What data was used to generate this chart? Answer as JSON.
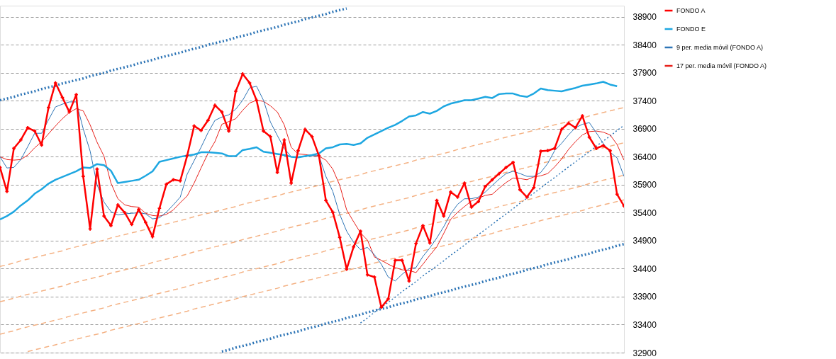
{
  "chart_data": {
    "type": "line",
    "categories": [
      null,
      null,
      null,
      null,
      null,
      null,
      null,
      null,
      null,
      null,
      null,
      null,
      null,
      null,
      null,
      null,
      null,
      null,
      null,
      null,
      null,
      null,
      null,
      null,
      null,
      null,
      null,
      null,
      null,
      null,
      null,
      null,
      null,
      null,
      null,
      null,
      null,
      null,
      null,
      null,
      null,
      null,
      null,
      null,
      null,
      null,
      null,
      null,
      null,
      null,
      null,
      null,
      null,
      null,
      null,
      null,
      null,
      null,
      null,
      null,
      null,
      null,
      null,
      null,
      null,
      null,
      null,
      null,
      null,
      null,
      null,
      null,
      null,
      null,
      null,
      null,
      null,
      null,
      null,
      null,
      null,
      null,
      null,
      null,
      null,
      null,
      null,
      null,
      null,
      null,
      null
    ],
    "ylim": [
      32900,
      39100
    ],
    "yticks": [
      32900,
      33400,
      33900,
      34400,
      34900,
      35400,
      35900,
      36400,
      36900,
      37400,
      37900,
      38400,
      38900
    ],
    "grid": "y",
    "tick_labels": "y",
    "legend": "right",
    "series": [
      {
        "name": "FONDO A",
        "color": "#ff0000",
        "marker": "cross",
        "line_style": "solid",
        "values": [
          36210,
          35780,
          36550,
          36700,
          36920,
          36860,
          36610,
          37280,
          37720,
          37460,
          37200,
          37510,
          36050,
          35110,
          36180,
          35340,
          35170,
          35540,
          35400,
          35190,
          35460,
          35230,
          34970,
          35480,
          35910,
          35990,
          35970,
          36420,
          36950,
          36870,
          37050,
          37320,
          37200,
          36860,
          37570,
          37880,
          37720,
          37410,
          36860,
          36760,
          36120,
          36700,
          35930,
          36510,
          36890,
          36760,
          36420,
          35620,
          35410,
          34960,
          34390,
          34790,
          35070,
          34290,
          34250,
          33710,
          33860,
          34550,
          34550,
          34180,
          34850,
          35170,
          34860,
          35620,
          35340,
          35770,
          35680,
          35930,
          35500,
          35600,
          35870,
          35990,
          36100,
          36210,
          36300,
          35810,
          35680,
          35850,
          36500,
          36510,
          36550,
          36890,
          37000,
          36920,
          37130,
          36750,
          36550,
          36600,
          36510,
          35730,
          35520
        ]
      },
      {
        "name": "FONDO E",
        "color": "#1ea7e1",
        "line_style": "solid",
        "values": [
          35280,
          35340,
          35420,
          35530,
          35620,
          35740,
          35820,
          35920,
          35990,
          36040,
          36090,
          36140,
          36210,
          36200,
          36270,
          36250,
          36150,
          35930,
          35950,
          35970,
          35990,
          36060,
          36140,
          36310,
          36340,
          36370,
          36400,
          36420,
          36440,
          36480,
          36480,
          36470,
          36460,
          36410,
          36410,
          36520,
          36540,
          36570,
          36490,
          36470,
          36450,
          36430,
          36400,
          36390,
          36410,
          36430,
          36460,
          36550,
          36570,
          36620,
          36630,
          36610,
          36640,
          36740,
          36800,
          36860,
          36920,
          36970,
          37040,
          37120,
          37140,
          37200,
          37170,
          37220,
          37300,
          37350,
          37380,
          37410,
          37410,
          37440,
          37470,
          37450,
          37520,
          37530,
          37530,
          37490,
          37470,
          37530,
          37620,
          37590,
          37580,
          37570,
          37600,
          37630,
          37670,
          37690,
          37710,
          37740,
          37690,
          37660,
          null
        ]
      },
      {
        "name": "9 per. media móvil (FONDO A)",
        "color": "#2e75b6",
        "line_style": "solid",
        "values": [
          36400,
          36200,
          36210,
          36350,
          36580,
          36820,
          36820,
          37060,
          37290,
          37340,
          37380,
          37380,
          36900,
          36500,
          35900,
          35590,
          35420,
          35360,
          35380,
          35390,
          35400,
          35380,
          35290,
          35310,
          35410,
          35540,
          35680,
          36090,
          36330,
          36570,
          36830,
          37050,
          37110,
          37150,
          37250,
          37410,
          37630,
          37660,
          37410,
          37020,
          36780,
          36550,
          36400,
          36400,
          36410,
          36420,
          36420,
          36050,
          35780,
          35370,
          35070,
          34870,
          34740,
          34780,
          34650,
          34480,
          34250,
          34180,
          34300,
          34400,
          34420,
          34620,
          34770,
          34950,
          35150,
          35380,
          35550,
          35650,
          35650,
          35680,
          35770,
          35890,
          36000,
          36100,
          36140,
          36100,
          36050,
          36050,
          36120,
          36280,
          36510,
          36640,
          36790,
          36920,
          36980,
          37010,
          36830,
          36640,
          36480,
          36380,
          36050
        ]
      },
      {
        "name": "17 per. media móvil (FONDO A)",
        "color": "#e8221c",
        "line_style": "solid",
        "values": [
          36400,
          36350,
          36340,
          36350,
          36430,
          36560,
          36670,
          36810,
          36950,
          37080,
          37190,
          37260,
          37220,
          36970,
          36660,
          36410,
          35930,
          35650,
          35540,
          35510,
          35500,
          35390,
          35350,
          35340,
          35370,
          35450,
          35580,
          35700,
          35930,
          36200,
          36460,
          36670,
          36980,
          37030,
          37080,
          37230,
          37360,
          37410,
          37390,
          37310,
          37200,
          36970,
          36570,
          36450,
          36440,
          36420,
          36410,
          36340,
          36180,
          35890,
          35450,
          35240,
          35040,
          34910,
          34610,
          34550,
          34480,
          34420,
          34380,
          34370,
          34330,
          34480,
          34640,
          34790,
          35030,
          35280,
          35410,
          35510,
          35610,
          35660,
          35710,
          35730,
          35840,
          35940,
          36020,
          36010,
          35990,
          36040,
          36060,
          36100,
          36220,
          36360,
          36530,
          36670,
          36790,
          36850,
          36860,
          36840,
          36790,
          36620,
          36340
        ]
      },
      {
        "color": "#2e75b6",
        "line_style": "dotted",
        "values": [
          37410,
          37440,
          37470,
          37510,
          37540,
          37570,
          37610,
          37640,
          37670,
          37710,
          37740,
          37770,
          37800,
          37840,
          37870,
          37900,
          37940,
          37970,
          38000,
          38030,
          38070,
          38100,
          38130,
          38170,
          38200,
          38230,
          38260,
          38300,
          38330,
          38360,
          38400,
          38430,
          38460,
          38490,
          38530,
          38560,
          38590,
          38630,
          38660,
          38690,
          38720,
          38760,
          38790,
          38820,
          38860,
          38890,
          38920,
          38950,
          38990,
          39020,
          39050,
          null,
          null,
          null,
          null,
          null,
          null,
          null,
          null,
          null,
          null,
          null,
          null,
          null,
          null,
          null,
          null,
          null,
          null,
          null,
          null,
          null,
          null,
          null,
          null,
          null,
          null,
          null,
          null,
          null,
          null,
          null,
          null,
          null,
          null,
          null,
          null,
          null,
          null,
          null,
          null
        ]
      },
      {
        "color": "#2e75b6",
        "line_style": "dotted",
        "values": [
          null,
          null,
          null,
          null,
          null,
          null,
          null,
          null,
          null,
          null,
          null,
          null,
          null,
          null,
          null,
          null,
          null,
          null,
          null,
          null,
          null,
          null,
          null,
          null,
          null,
          null,
          null,
          null,
          null,
          null,
          null,
          null,
          32920,
          32950,
          32990,
          33020,
          33050,
          33090,
          33120,
          33150,
          33190,
          33220,
          33250,
          33280,
          33320,
          33350,
          33380,
          33420,
          33450,
          33480,
          33520,
          33550,
          33580,
          33620,
          33650,
          33680,
          33710,
          33750,
          33780,
          33810,
          33850,
          33880,
          33910,
          33950,
          33980,
          34010,
          34050,
          34080,
          34110,
          34140,
          34180,
          34210,
          34240,
          34280,
          34310,
          34340,
          34380,
          34410,
          34440,
          34480,
          34510,
          34540,
          34570,
          34610,
          34640,
          34670,
          34710,
          34740,
          34770,
          34810,
          34840
        ]
      },
      {
        "color": "#2e75b6",
        "line_style": "dotted",
        "values": [
          null,
          null,
          null,
          null,
          null,
          null,
          null,
          null,
          null,
          null,
          null,
          null,
          null,
          null,
          null,
          null,
          null,
          null,
          null,
          null,
          null,
          null,
          null,
          null,
          null,
          null,
          null,
          null,
          null,
          null,
          null,
          null,
          null,
          null,
          null,
          null,
          null,
          null,
          null,
          null,
          null,
          null,
          null,
          null,
          null,
          null,
          null,
          null,
          null,
          null,
          null,
          null,
          33430,
          33520,
          33620,
          33710,
          33800,
          33890,
          33990,
          34080,
          34170,
          34270,
          34360,
          34450,
          34540,
          34640,
          34730,
          34820,
          34920,
          35010,
          35100,
          35190,
          35290,
          35380,
          35470,
          35570,
          35660,
          35750,
          35840,
          35940,
          36030,
          36120,
          36220,
          36310,
          36400,
          36490,
          36590,
          36680,
          36770,
          36870,
          36960
        ]
      },
      {
        "color": "#f4b183",
        "line_style": "dashed",
        "values": [
          34440,
          34470,
          34500,
          34540,
          34570,
          34600,
          34630,
          34660,
          34690,
          34720,
          34760,
          34790,
          34820,
          34850,
          34880,
          34910,
          34950,
          34980,
          35010,
          35040,
          35070,
          35100,
          35140,
          35170,
          35200,
          35230,
          35260,
          35290,
          35330,
          35360,
          35390,
          35420,
          35450,
          35480,
          35510,
          35550,
          35580,
          35610,
          35640,
          35670,
          35700,
          35740,
          35770,
          35800,
          35830,
          35860,
          35890,
          35930,
          35960,
          35990,
          36020,
          36050,
          36080,
          36120,
          36150,
          36180,
          36210,
          36240,
          36270,
          36300,
          36340,
          36370,
          36400,
          36430,
          36460,
          36490,
          36530,
          36560,
          36590,
          36620,
          36650,
          36680,
          36720,
          36750,
          36780,
          36810,
          36840,
          36870,
          36910,
          36940,
          36970,
          37000,
          37030,
          37060,
          37090,
          37130,
          37160,
          37190,
          37220,
          37250,
          37280
        ]
      },
      {
        "color": "#f4b183",
        "line_style": "dashed",
        "values": [
          33810,
          33840,
          33870,
          33910,
          33940,
          33970,
          34000,
          34030,
          34060,
          34090,
          34130,
          34160,
          34190,
          34220,
          34250,
          34280,
          34320,
          34350,
          34380,
          34410,
          34440,
          34470,
          34510,
          34540,
          34570,
          34600,
          34630,
          34660,
          34700,
          34730,
          34760,
          34790,
          34820,
          34850,
          34880,
          34920,
          34950,
          34980,
          35010,
          35040,
          35070,
          35110,
          35140,
          35170,
          35200,
          35230,
          35260,
          35300,
          35330,
          35360,
          35390,
          35420,
          35450,
          35490,
          35520,
          35550,
          35580,
          35610,
          35640,
          35670,
          35710,
          35740,
          35770,
          35800,
          35830,
          35860,
          35900,
          35930,
          35960,
          35990,
          36020,
          36050,
          36090,
          36120,
          36150,
          36180,
          36210,
          36240,
          36280,
          36310,
          36340,
          36370,
          36400,
          36430,
          36460,
          36500,
          36530,
          36560,
          36590,
          36620,
          36650
        ]
      },
      {
        "color": "#f4b183",
        "line_style": "dashed",
        "values": [
          33230,
          33260,
          33290,
          33330,
          33360,
          33390,
          33420,
          33450,
          33480,
          33510,
          33550,
          33580,
          33610,
          33640,
          33670,
          33700,
          33740,
          33770,
          33800,
          33830,
          33860,
          33890,
          33930,
          33960,
          33990,
          34020,
          34050,
          34080,
          34120,
          34150,
          34180,
          34210,
          34240,
          34270,
          34300,
          34340,
          34370,
          34400,
          34430,
          34460,
          34490,
          34530,
          34560,
          34590,
          34620,
          34650,
          34680,
          34720,
          34750,
          34780,
          34810,
          34840,
          34870,
          34910,
          34940,
          34970,
          35000,
          35030,
          35060,
          35090,
          35130,
          35160,
          35190,
          35220,
          35250,
          35280,
          35320,
          35350,
          35380,
          35410,
          35440,
          35470,
          35510,
          35540,
          35570,
          35600,
          35630,
          35660,
          35700,
          35730,
          35760,
          35790,
          35820,
          35850,
          35880,
          35920,
          35950,
          35980,
          36010,
          36040,
          36070
        ]
      },
      {
        "color": "#f4b183",
        "line_style": "dashed",
        "values": [
          null,
          null,
          null,
          null,
          32920,
          32950,
          32980,
          33010,
          33040,
          33070,
          33110,
          33140,
          33170,
          33200,
          33230,
          33260,
          33300,
          33330,
          33360,
          33390,
          33420,
          33450,
          33490,
          33520,
          33550,
          33580,
          33610,
          33640,
          33680,
          33710,
          33740,
          33770,
          33800,
          33830,
          33860,
          33900,
          33930,
          33960,
          33990,
          34020,
          34050,
          34090,
          34120,
          34150,
          34180,
          34210,
          34240,
          34280,
          34310,
          34340,
          34370,
          34400,
          34430,
          34470,
          34500,
          34530,
          34560,
          34590,
          34620,
          34650,
          34690,
          34720,
          34750,
          34780,
          34810,
          34840,
          34880,
          34910,
          34940,
          34970,
          35000,
          35030,
          35070,
          35100,
          35130,
          35160,
          35190,
          35220,
          35260,
          35290,
          35320,
          35350,
          35380,
          35410,
          35440,
          35480,
          35510,
          35540,
          35570,
          35600,
          35630
        ]
      }
    ]
  }
}
